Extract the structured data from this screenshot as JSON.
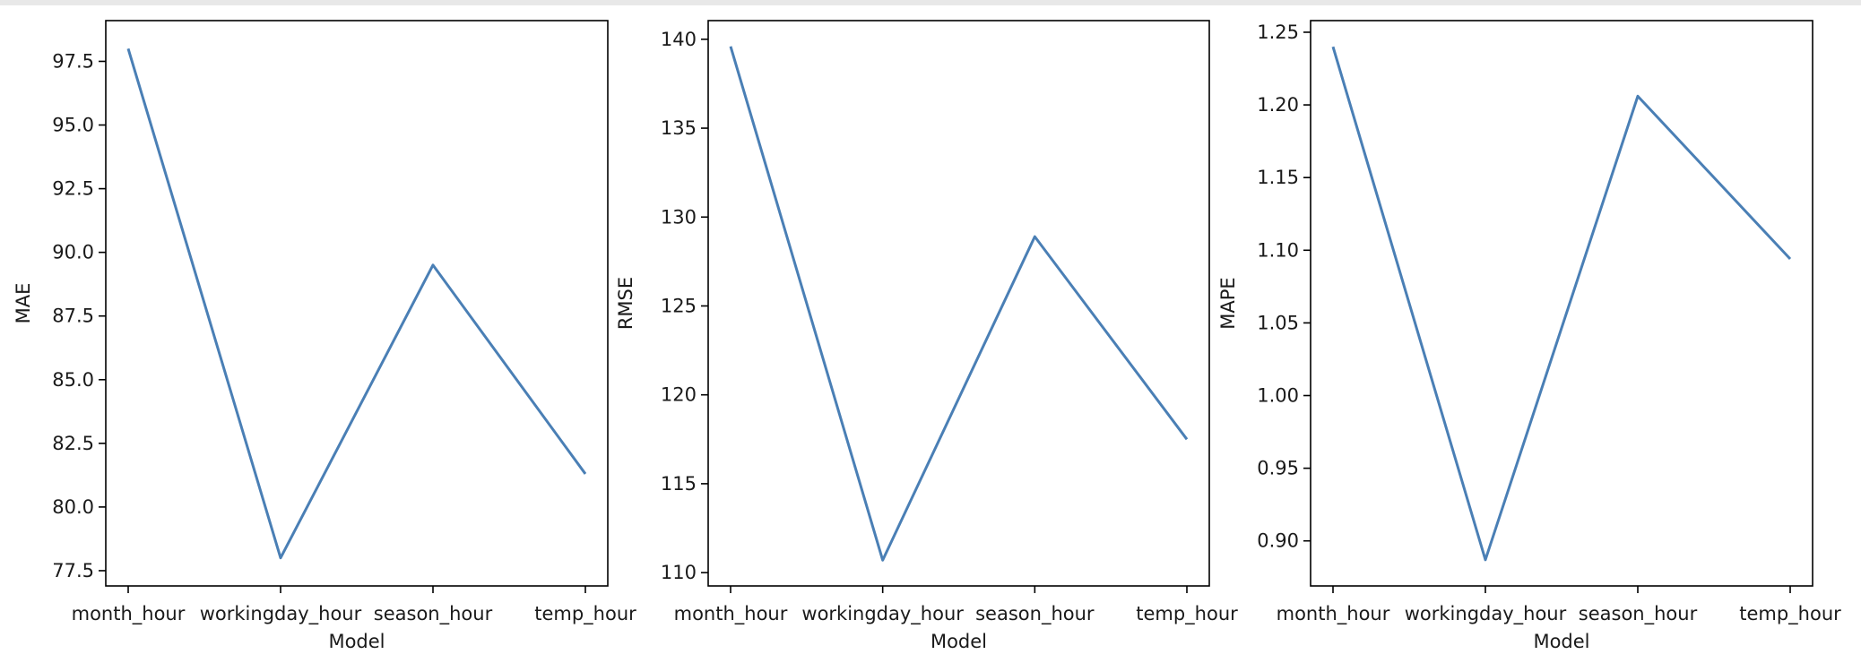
{
  "chart_data": [
    {
      "type": "line",
      "categories": [
        "month_hour",
        "workingday_hour",
        "season_hour",
        "temp_hour"
      ],
      "series": [
        {
          "values": [
            98.0,
            78.0,
            89.5,
            81.3
          ]
        }
      ],
      "xlabel": "Model",
      "ylabel": "MAE",
      "ylim": [
        76.9,
        99.1
      ],
      "yticks": [
        77.5,
        80.0,
        82.5,
        85.0,
        87.5,
        90.0,
        92.5,
        95.0,
        97.5
      ],
      "ytick_labels": [
        "77.5",
        "80.0",
        "82.5",
        "85.0",
        "87.5",
        "90.0",
        "92.5",
        "95.0",
        "97.5"
      ],
      "color": "#4a7fb5",
      "grid": false
    },
    {
      "type": "line",
      "categories": [
        "month_hour",
        "workingday_hour",
        "season_hour",
        "temp_hour"
      ],
      "series": [
        {
          "values": [
            139.6,
            110.7,
            128.9,
            117.5
          ]
        }
      ],
      "xlabel": "Model",
      "ylabel": "RMSE",
      "ylim": [
        109.25,
        141.05
      ],
      "yticks": [
        110,
        115,
        120,
        125,
        130,
        135,
        140
      ],
      "ytick_labels": [
        "110",
        "115",
        "120",
        "125",
        "130",
        "135",
        "140"
      ],
      "color": "#4a7fb5",
      "grid": false
    },
    {
      "type": "line",
      "categories": [
        "month_hour",
        "workingday_hour",
        "season_hour",
        "temp_hour"
      ],
      "series": [
        {
          "values": [
            1.24,
            0.887,
            1.206,
            1.094
          ]
        }
      ],
      "xlabel": "Model",
      "ylabel": "MAPE",
      "ylim": [
        0.869,
        1.258
      ],
      "yticks": [
        0.9,
        0.95,
        1.0,
        1.05,
        1.1,
        1.15,
        1.2,
        1.25
      ],
      "ytick_labels": [
        "0.90",
        "0.95",
        "1.00",
        "1.05",
        "1.10",
        "1.15",
        "1.20",
        "1.25"
      ],
      "color": "#4a7fb5",
      "grid": false
    }
  ]
}
